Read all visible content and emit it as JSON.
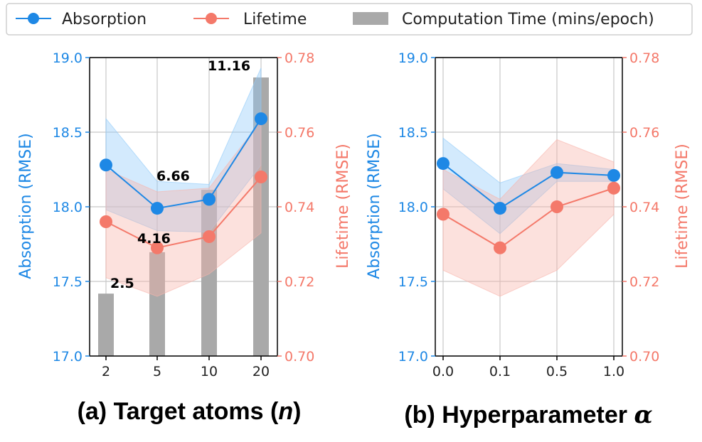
{
  "legend": {
    "items": [
      {
        "label": "Absorption",
        "kind": "line",
        "color": "#1e88e5"
      },
      {
        "label": "Lifetime",
        "kind": "line",
        "color": "#f4796a"
      },
      {
        "label": "Computation Time (mins/epoch)",
        "kind": "bar",
        "color": "#a9a9a9"
      }
    ]
  },
  "colors": {
    "absorption": "#1e88e5",
    "absorption_band": "#90caf9",
    "lifetime": "#f4796a",
    "lifetime_band": "#f8b4ab",
    "bar": "#a9a9a9",
    "grid": "#c8c8c8"
  },
  "chart_data": [
    {
      "type": "line",
      "caption_prefix": "(a) Target atoms (",
      "caption_var": "n",
      "caption_suffix": ")",
      "categories": [
        "2",
        "5",
        "10",
        "20"
      ],
      "ylabel_left": "Absorption (RMSE)",
      "ylabel_right": "Lifetime (RMSE)",
      "ylim_left": [
        17.0,
        19.0
      ],
      "ylim_right": [
        0.7,
        0.78
      ],
      "yticks_left": [
        "17.0",
        "17.5",
        "18.0",
        "18.5",
        "19.0"
      ],
      "yticks_right": [
        "0.70",
        "0.72",
        "0.74",
        "0.76",
        "0.78"
      ],
      "grid": true,
      "series": [
        {
          "name": "Absorption",
          "axis": "left",
          "values": [
            18.28,
            17.99,
            18.05,
            18.59
          ],
          "band_low": [
            17.98,
            17.84,
            17.83,
            18.28
          ],
          "band_high": [
            18.59,
            18.17,
            18.15,
            18.93
          ]
        },
        {
          "name": "Lifetime",
          "axis": "right",
          "values": [
            0.736,
            0.729,
            0.732,
            0.748
          ],
          "band_low": [
            0.721,
            0.716,
            0.722,
            0.733
          ],
          "band_high": [
            0.75,
            0.744,
            0.745,
            0.763
          ]
        }
      ],
      "bars": {
        "name": "Computation Time (mins/epoch)",
        "values": [
          2.5,
          4.16,
          6.66,
          11.16
        ],
        "labels": [
          "2.5",
          "4.16",
          "6.66",
          "11.16"
        ],
        "max": 11.16
      }
    },
    {
      "type": "line",
      "caption_prefix": "(b) Hyperparameter ",
      "caption_var": "α",
      "caption_suffix": "",
      "categories": [
        "0.0",
        "0.1",
        "0.5",
        "1.0"
      ],
      "ylabel_left": "Absorption (RMSE)",
      "ylabel_right": "Lifetime (RMSE)",
      "ylim_left": [
        17.0,
        19.0
      ],
      "ylim_right": [
        0.7,
        0.78
      ],
      "yticks_left": [
        "17.0",
        "17.5",
        "18.0",
        "18.5",
        "19.0"
      ],
      "yticks_right": [
        "0.70",
        "0.72",
        "0.74",
        "0.76",
        "0.78"
      ],
      "grid": true,
      "series": [
        {
          "name": "Absorption",
          "axis": "left",
          "values": [
            18.29,
            17.99,
            18.23,
            18.21
          ],
          "band_low": [
            18.12,
            17.82,
            18.17,
            18.17
          ],
          "band_high": [
            18.46,
            18.16,
            18.29,
            18.25
          ]
        },
        {
          "name": "Lifetime",
          "axis": "right",
          "values": [
            0.738,
            0.729,
            0.74,
            0.745
          ],
          "band_low": [
            0.723,
            0.716,
            0.723,
            0.738
          ],
          "band_high": [
            0.75,
            0.742,
            0.758,
            0.752
          ]
        }
      ]
    }
  ]
}
